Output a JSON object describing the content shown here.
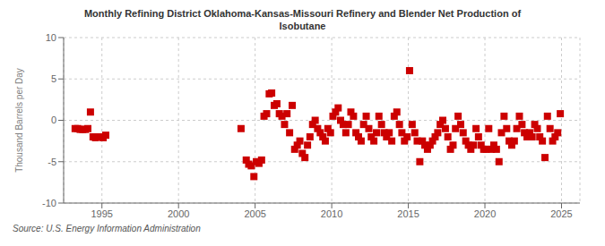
{
  "chart_data": {
    "type": "scatter",
    "title": "Monthly Refining District Oklahoma-Kansas-Missouri Refinery and Blender Net Production of\nIsobutane",
    "ylabel": "Thousand Barrels per Day",
    "annotations": [
      "Source: U.S. Energy Information Administration"
    ],
    "color": "#cc0000",
    "marker": "square",
    "grid": true,
    "xlim": [
      1992.5,
      2026.2
    ],
    "xticks": [
      1995,
      2000,
      2005,
      2010,
      2015,
      2020,
      2025
    ],
    "ylim": [
      -10,
      10
    ],
    "yticks": [
      -10,
      -5,
      0,
      5,
      10
    ],
    "x": [
      1993.25,
      1993.42,
      1993.58,
      1993.75,
      1993.92,
      1994.08,
      1994.25,
      1994.42,
      1994.58,
      1994.75,
      1994.92,
      1995.08,
      1995.25,
      2004.08,
      2004.42,
      2004.58,
      2004.75,
      2004.92,
      2005.08,
      2005.25,
      2005.42,
      2005.58,
      2005.75,
      2005.92,
      2006.08,
      2006.25,
      2006.42,
      2006.58,
      2006.75,
      2006.92,
      2007.08,
      2007.25,
      2007.42,
      2007.58,
      2007.75,
      2007.92,
      2008.08,
      2008.25,
      2008.42,
      2008.58,
      2008.75,
      2008.92,
      2009.08,
      2009.25,
      2009.42,
      2009.58,
      2009.75,
      2009.92,
      2010.08,
      2010.25,
      2010.42,
      2010.58,
      2010.75,
      2010.92,
      2011.08,
      2011.25,
      2011.42,
      2011.58,
      2011.75,
      2011.92,
      2012.08,
      2012.25,
      2012.42,
      2012.58,
      2012.75,
      2012.92,
      2013.08,
      2013.25,
      2013.42,
      2013.58,
      2013.75,
      2013.92,
      2014.08,
      2014.25,
      2014.42,
      2014.58,
      2014.75,
      2014.92,
      2015.08,
      2015.25,
      2015.42,
      2015.58,
      2015.75,
      2015.92,
      2016.08,
      2016.25,
      2016.42,
      2016.58,
      2016.75,
      2016.92,
      2017.08,
      2017.25,
      2017.42,
      2017.58,
      2017.75,
      2017.92,
      2018.08,
      2018.25,
      2018.42,
      2018.58,
      2018.75,
      2018.92,
      2019.08,
      2019.25,
      2019.42,
      2019.58,
      2019.75,
      2019.92,
      2020.08,
      2020.25,
      2020.42,
      2020.58,
      2020.75,
      2020.92,
      2021.08,
      2021.25,
      2021.42,
      2021.58,
      2021.75,
      2021.92,
      2022.08,
      2022.25,
      2022.42,
      2022.58,
      2022.75,
      2022.92,
      2023.08,
      2023.25,
      2023.42,
      2023.58,
      2023.75,
      2023.92,
      2024.08,
      2024.25,
      2024.42,
      2024.58,
      2024.75,
      2024.92
    ],
    "values": [
      -1.0,
      -1.0,
      -1.1,
      -1.1,
      -1.1,
      -1.0,
      1.0,
      -2.0,
      -2.1,
      -2.0,
      -2.0,
      -2.1,
      -1.8,
      -1.0,
      -4.8,
      -5.3,
      -5.5,
      -6.8,
      -5.0,
      -5.2,
      -4.8,
      0.5,
      0.8,
      3.2,
      3.3,
      1.8,
      2.0,
      0.8,
      0.5,
      -0.5,
      0.8,
      -1.5,
      1.8,
      -3.5,
      -3.0,
      -2.5,
      -4.0,
      -4.5,
      -3.0,
      -2.0,
      -0.5,
      0.0,
      -1.0,
      -1.5,
      -2.0,
      -2.5,
      -1.0,
      -1.5,
      0.5,
      1.0,
      1.5,
      0.0,
      -0.5,
      -1.5,
      -0.5,
      1.0,
      0.5,
      -1.5,
      -2.0,
      -2.5,
      -0.5,
      0.5,
      -1.0,
      -2.0,
      -2.5,
      -1.5,
      0.5,
      -0.5,
      -1.5,
      -2.0,
      -1.5,
      -2.5,
      0.5,
      1.0,
      -0.5,
      -1.5,
      -2.5,
      -2.0,
      6.0,
      -0.5,
      -1.5,
      -2.5,
      -5.0,
      -2.5,
      -3.0,
      -3.5,
      -3.0,
      -2.5,
      -2.0,
      -1.5,
      -0.5,
      0.0,
      -1.0,
      -2.0,
      -3.5,
      -3.0,
      -1.0,
      0.5,
      -0.5,
      -1.5,
      -2.5,
      -3.0,
      -3.5,
      -3.0,
      -1.0,
      -2.0,
      -3.0,
      -3.5,
      -3.5,
      -1.0,
      -3.5,
      -3.0,
      -3.5,
      -5.0,
      -1.5,
      0.5,
      -1.0,
      -2.5,
      -3.0,
      -2.5,
      -1.0,
      0.5,
      -0.5,
      -1.5,
      -2.0,
      -1.5,
      -2.0,
      -0.5,
      -1.0,
      -2.0,
      -2.5,
      -4.5,
      0.5,
      -1.0,
      -2.5,
      -2.0,
      -1.5,
      0.8
    ]
  }
}
